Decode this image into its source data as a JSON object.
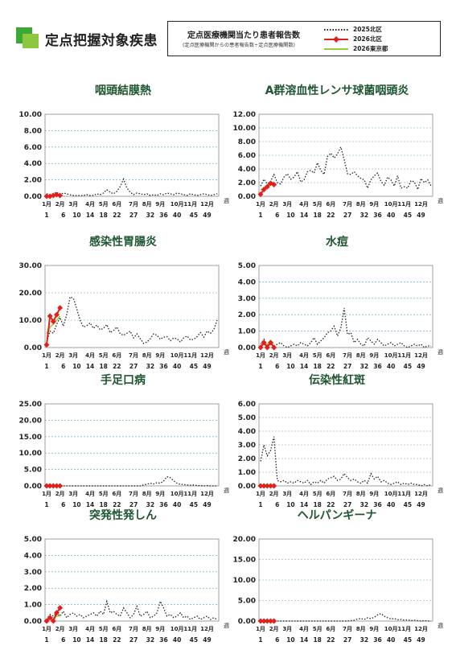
{
  "page": {
    "title": "定点把握対象疾患"
  },
  "legend": {
    "title": "定点医療機関当たり患者報告数",
    "subtitle": "(定点医療機関からの患者報告数÷定点医療機関数)",
    "items": [
      {
        "label": "2025北区",
        "color": "#222222",
        "style": "dotted"
      },
      {
        "label": "2026北区",
        "color": "#e0201b",
        "style": "diamond"
      },
      {
        "label": "2026東京都",
        "color": "#9acd32",
        "style": "solid"
      }
    ]
  },
  "axis": {
    "week_unit": "週",
    "month_labels": [
      "1月",
      "2月",
      "3月",
      "4月",
      "5月",
      "6月",
      "7月",
      "8月",
      "9月",
      "10月",
      "11月",
      "12月"
    ],
    "week_ticks": [
      "1",
      "6",
      "10",
      "14",
      "18",
      "22",
      "27",
      "32",
      "36",
      "40",
      "45",
      "49"
    ]
  },
  "chart_data": [
    {
      "type": "line",
      "title": "咽頭結膜熱",
      "ylim": [
        0,
        10
      ],
      "yticks": [
        "0.00",
        "2.00",
        "4.00",
        "6.00",
        "8.00",
        "10.00"
      ],
      "series": [
        {
          "name": "2025北区",
          "values": [
            0.3,
            0.2,
            0.3,
            0.5,
            0.2,
            0.4,
            0.3,
            0.2,
            0.1,
            0.1,
            0.1,
            0.1,
            0.2,
            0.1,
            0.1,
            0.3,
            0.2,
            0.4,
            0.8,
            0.5,
            0.3,
            0.6,
            1.2,
            2.1,
            1.0,
            0.5,
            0.2,
            0.4,
            0.3,
            0.2,
            0.3,
            0.1,
            0.2,
            0.1,
            0.3,
            0.2,
            0.4,
            0.3,
            0.2,
            0.4,
            0.3,
            0.2,
            0.1,
            0.3,
            0.2,
            0.1,
            0.2,
            0.3,
            0.2,
            0.1,
            0.2,
            0.3
          ]
        },
        {
          "name": "2026北区",
          "values": [
            0.0,
            0.0,
            0.1,
            0.2,
            0.1
          ]
        },
        {
          "name": "2026東京都",
          "values": [
            0.1,
            0.1,
            0.2,
            0.2,
            0.2
          ]
        }
      ]
    },
    {
      "type": "line",
      "title": "A群溶血性レンサ球菌咽頭炎",
      "ylim": [
        0,
        12
      ],
      "yticks": [
        "0.00",
        "2.00",
        "4.00",
        "6.00",
        "8.00",
        "10.00",
        "12.00"
      ],
      "series": [
        {
          "name": "2025北区",
          "values": [
            1.5,
            2.5,
            1.8,
            2.2,
            3.2,
            2.0,
            1.8,
            2.8,
            3.3,
            2.5,
            2.8,
            3.6,
            2.1,
            2.4,
            3.6,
            3.8,
            3.4,
            4.9,
            3.8,
            3.2,
            5.8,
            6.3,
            5.6,
            6.2,
            7.2,
            5.4,
            3.3,
            3.2,
            3.6,
            3.0,
            2.6,
            2.4,
            1.2,
            2.4,
            3.0,
            3.4,
            2.2,
            1.6,
            2.8,
            2.4,
            1.5,
            3.0,
            1.2,
            1.4,
            1.2,
            2.3,
            2.1,
            1.0,
            2.6,
            2.0,
            2.4,
            1.5
          ]
        },
        {
          "name": "2026北区",
          "values": [
            0.3,
            1.0,
            1.4,
            1.9,
            1.7
          ]
        },
        {
          "name": "2026東京都",
          "values": [
            0.9,
            1.2,
            1.6,
            1.9,
            2.1
          ]
        }
      ]
    },
    {
      "type": "line",
      "title": "感染性胃腸炎",
      "ylim": [
        0,
        30
      ],
      "yticks": [
        "0.00",
        "10.00",
        "20.00",
        "30.00"
      ],
      "series": [
        {
          "name": "2025北区",
          "values": [
            2.0,
            6.0,
            5.2,
            8.5,
            11.0,
            7.8,
            12.0,
            18.5,
            18.0,
            14.2,
            10.0,
            7.5,
            8.0,
            9.0,
            7.0,
            8.2,
            6.5,
            7.0,
            8.4,
            5.5,
            6.2,
            7.5,
            5.0,
            4.5,
            5.2,
            6.0,
            3.5,
            5.0,
            3.2,
            1.5,
            2.0,
            3.2,
            5.0,
            4.5,
            3.0,
            3.8,
            4.0,
            2.5,
            3.5,
            3.2,
            2.0,
            3.5,
            4.2,
            2.8,
            3.0,
            4.0,
            5.5,
            3.8,
            6.0,
            5.2,
            6.5,
            10.0
          ]
        },
        {
          "name": "2026北区",
          "values": [
            1.0,
            11.5,
            9.5,
            12.0,
            14.5
          ]
        },
        {
          "name": "2026東京都",
          "values": [
            5.0,
            7.5,
            8.5,
            10.0,
            11.5
          ]
        }
      ]
    },
    {
      "type": "line",
      "title": "水痘",
      "ylim": [
        0,
        5
      ],
      "yticks": [
        "0.00",
        "1.00",
        "2.00",
        "3.00",
        "4.00",
        "5.00"
      ],
      "series": [
        {
          "name": "2025北区",
          "values": [
            0.2,
            0.5,
            0.1,
            0.3,
            0.1,
            0.2,
            0.3,
            0.1,
            0.0,
            0.1,
            0.2,
            0.1,
            0.3,
            0.2,
            0.1,
            0.3,
            0.6,
            0.2,
            0.4,
            0.6,
            0.9,
            1.0,
            1.3,
            0.7,
            1.2,
            2.4,
            0.8,
            0.9,
            0.3,
            0.5,
            0.2,
            0.1,
            0.6,
            0.4,
            0.2,
            0.5,
            0.3,
            0.1,
            0.2,
            0.3,
            0.1,
            0.2,
            0.3,
            0.1,
            0.0,
            0.1,
            0.2,
            0.1,
            0.2,
            0.0,
            0.1,
            0.1
          ]
        },
        {
          "name": "2026北区",
          "values": [
            0.0,
            0.3,
            0.0,
            0.3,
            0.0
          ]
        },
        {
          "name": "2026東京都",
          "values": [
            0.2,
            0.2,
            0.2,
            0.3,
            0.2
          ]
        }
      ]
    },
    {
      "type": "line",
      "title": "手足口病",
      "ylim": [
        0,
        25
      ],
      "yticks": [
        "0.00",
        "5.00",
        "10.00",
        "15.00",
        "20.00",
        "25.00"
      ],
      "series": [
        {
          "name": "2025北区",
          "values": [
            0.0,
            0.0,
            0.0,
            0.0,
            0.0,
            0.0,
            0.0,
            0.0,
            0.0,
            0.0,
            0.0,
            0.0,
            0.0,
            0.0,
            0.0,
            0.0,
            0.0,
            0.0,
            0.0,
            0.0,
            0.0,
            0.0,
            0.0,
            0.0,
            0.0,
            0.0,
            0.0,
            0.0,
            0.0,
            0.3,
            0.5,
            0.8,
            0.6,
            1.0,
            0.8,
            1.5,
            2.8,
            2.5,
            1.5,
            0.8,
            0.5,
            0.4,
            0.3,
            0.2,
            0.3,
            0.1,
            0.1,
            0.0,
            0.1,
            0.0,
            0.0,
            0.0
          ]
        },
        {
          "name": "2026北区",
          "values": [
            0.0,
            0.0,
            0.0,
            0.0,
            0.0
          ]
        },
        {
          "name": "2026東京都",
          "values": [
            0.0,
            0.0,
            0.0,
            0.0,
            0.0
          ]
        }
      ]
    },
    {
      "type": "line",
      "title": "伝染性紅斑",
      "ylim": [
        0,
        6
      ],
      "yticks": [
        "0.00",
        "1.00",
        "2.00",
        "3.00",
        "4.00",
        "5.00",
        "6.00"
      ],
      "series": [
        {
          "name": "2025北区",
          "values": [
            1.8,
            3.0,
            2.2,
            2.6,
            3.6,
            0.4,
            0.3,
            0.4,
            0.2,
            0.3,
            0.2,
            0.4,
            0.3,
            0.2,
            0.4,
            0.1,
            0.3,
            0.2,
            0.4,
            0.2,
            0.5,
            0.6,
            0.7,
            0.4,
            0.5,
            0.9,
            0.6,
            0.4,
            0.5,
            0.3,
            0.2,
            0.4,
            0.2,
            0.9,
            0.5,
            0.7,
            0.3,
            0.4,
            0.2,
            0.1,
            0.2,
            0.3,
            0.1,
            0.2,
            0.1,
            0.2,
            0.1,
            0.1,
            0.0,
            0.1,
            0.0,
            0.1
          ]
        },
        {
          "name": "2026北区",
          "values": [
            0.0,
            0.0,
            0.0,
            0.0,
            0.0
          ]
        },
        {
          "name": "2026東京都",
          "values": [
            0.0,
            0.0,
            0.0,
            0.0,
            0.0
          ]
        }
      ]
    },
    {
      "type": "line",
      "title": "突発性発しん",
      "ylim": [
        0,
        5
      ],
      "yticks": [
        "0.00",
        "1.00",
        "2.00",
        "3.00",
        "4.00",
        "5.00"
      ],
      "series": [
        {
          "name": "2025北区",
          "values": [
            0.1,
            0.4,
            0.3,
            0.5,
            0.3,
            0.6,
            0.2,
            0.4,
            0.5,
            0.3,
            0.4,
            0.2,
            0.3,
            0.4,
            0.5,
            0.3,
            0.6,
            0.4,
            1.2,
            0.5,
            0.6,
            0.4,
            0.3,
            0.8,
            0.5,
            0.2,
            0.4,
            0.9,
            0.3,
            0.4,
            0.6,
            0.2,
            0.3,
            0.5,
            1.2,
            0.8,
            0.3,
            0.4,
            0.2,
            0.3,
            0.5,
            0.2,
            0.3,
            0.1,
            0.2,
            0.3,
            0.1,
            0.2,
            0.3,
            0.1,
            0.2,
            0.1
          ]
        },
        {
          "name": "2026北区",
          "values": [
            0.0,
            0.2,
            0.0,
            0.5,
            0.8
          ]
        },
        {
          "name": "2026東京都",
          "values": [
            0.1,
            0.2,
            0.2,
            0.3,
            0.3
          ]
        }
      ]
    },
    {
      "type": "line",
      "title": "ヘルパンギーナ",
      "ylim": [
        0,
        20
      ],
      "yticks": [
        "0.00",
        "5.00",
        "10.00",
        "15.00",
        "20.00"
      ],
      "series": [
        {
          "name": "2025北区",
          "values": [
            0.0,
            0.0,
            0.0,
            0.0,
            0.0,
            0.0,
            0.0,
            0.0,
            0.0,
            0.0,
            0.0,
            0.0,
            0.0,
            0.0,
            0.0,
            0.0,
            0.0,
            0.0,
            0.0,
            0.0,
            0.0,
            0.0,
            0.0,
            0.0,
            0.0,
            0.0,
            0.0,
            0.1,
            0.2,
            0.5,
            0.6,
            0.4,
            0.8,
            0.6,
            0.9,
            1.5,
            1.8,
            1.2,
            0.8,
            0.5,
            0.6,
            0.3,
            0.4,
            0.2,
            0.3,
            0.1,
            0.2,
            0.1,
            0.0,
            0.1,
            0.0,
            0.0
          ]
        },
        {
          "name": "2026北区",
          "values": [
            0.0,
            0.0,
            0.0,
            0.0,
            0.0
          ]
        },
        {
          "name": "2026東京都",
          "values": [
            0.0,
            0.0,
            0.0,
            0.0,
            0.0
          ]
        }
      ]
    }
  ]
}
